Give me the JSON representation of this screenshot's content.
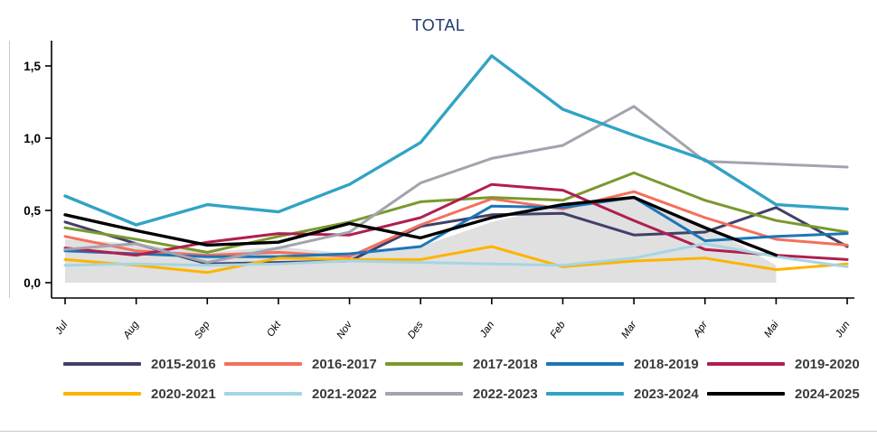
{
  "chart_data": {
    "type": "line",
    "title": "TOTAL",
    "title_color": "#223A70",
    "xlabel": "",
    "ylabel": "",
    "x_categories": [
      "Jul",
      "Aug",
      "Sep",
      "Okt",
      "Nov",
      "Des",
      "Jan",
      "Feb",
      "Mar",
      "Apr",
      "Mai",
      "Jun"
    ],
    "y_ticks": [
      {
        "label": "0,0",
        "value": 0.0
      },
      {
        "label": "0,5",
        "value": 0.5
      },
      {
        "label": "1,0",
        "value": 1.0
      },
      {
        "label": "1,5",
        "value": 1.5
      }
    ],
    "ylim": [
      0,
      1.65
    ],
    "grid": false,
    "legend_position": "bottom",
    "axis_color": "#000000",
    "shaded_area": {
      "name": "background-reference-area",
      "color": "#E0E0E0",
      "values": [
        0.3,
        0.27,
        0.21,
        0.25,
        0.2,
        0.25,
        0.42,
        0.53,
        0.58,
        0.4,
        0.12,
        null
      ]
    },
    "series": [
      {
        "name": "2015-2016",
        "color": "#40406A",
        "values": [
          0.42,
          0.27,
          0.13,
          0.14,
          0.15,
          0.39,
          0.47,
          0.48,
          0.33,
          0.35,
          0.52,
          0.25
        ]
      },
      {
        "name": "2016-2017",
        "color": "#F4705C",
        "values": [
          0.32,
          0.22,
          0.19,
          0.21,
          0.18,
          0.4,
          0.58,
          0.51,
          0.63,
          0.45,
          0.3,
          0.26
        ]
      },
      {
        "name": "2017-2018",
        "color": "#79992D",
        "values": [
          0.38,
          0.3,
          0.21,
          0.32,
          0.42,
          0.56,
          0.59,
          0.57,
          0.76,
          0.57,
          0.43,
          0.35
        ]
      },
      {
        "name": "2018-2019",
        "color": "#1B76B8",
        "values": [
          0.22,
          0.2,
          0.18,
          0.18,
          0.2,
          0.25,
          0.53,
          0.52,
          0.59,
          0.29,
          0.32,
          0.34
        ]
      },
      {
        "name": "2019-2020",
        "color": "#B01E4F",
        "values": [
          0.24,
          0.19,
          0.28,
          0.34,
          0.33,
          0.45,
          0.68,
          0.64,
          0.43,
          0.23,
          0.19,
          0.16
        ]
      },
      {
        "name": "2020-2021",
        "color": "#FFB300",
        "values": [
          0.16,
          0.12,
          0.07,
          0.17,
          0.16,
          0.16,
          0.25,
          0.11,
          0.15,
          0.17,
          0.09,
          0.13
        ]
      },
      {
        "name": "2021-2022",
        "color": "#A5D5E4",
        "values": [
          0.12,
          0.13,
          0.12,
          0.13,
          0.15,
          0.14,
          0.13,
          0.12,
          0.17,
          0.27,
          0.18,
          0.11
        ]
      },
      {
        "name": "2022-2023",
        "color": "#A3A3AF",
        "values": [
          0.23,
          0.27,
          0.14,
          0.24,
          0.35,
          0.69,
          0.86,
          0.95,
          1.22,
          0.84,
          0.82,
          0.8
        ]
      },
      {
        "name": "2023-2024",
        "color": "#31A3C4",
        "values": [
          0.6,
          0.4,
          0.54,
          0.49,
          0.68,
          0.97,
          1.57,
          1.2,
          1.02,
          0.85,
          0.54,
          0.51
        ]
      },
      {
        "name": "2024-2025",
        "color": "#000000",
        "values": [
          0.47,
          0.36,
          0.26,
          0.28,
          0.41,
          0.31,
          0.45,
          0.54,
          0.59,
          0.38,
          0.19,
          null
        ]
      }
    ]
  }
}
